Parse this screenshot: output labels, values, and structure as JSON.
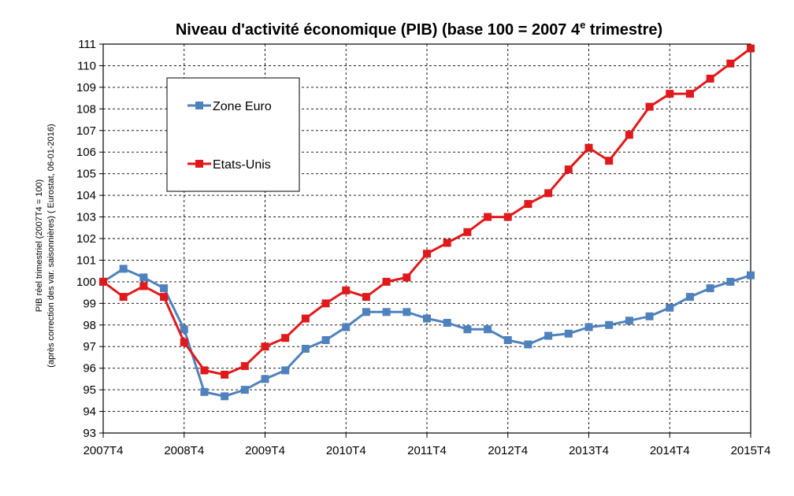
{
  "chart_data": {
    "type": "line",
    "title": "Niveau d'activité économique (PIB)  (base 100 = 2007 4",
    "title_sup": "e",
    "title_end": " trimestre)",
    "ylabel_line1": "PIB réel trimestriel (2007T4 = 100)",
    "ylabel_line2": "(après correction des var. saisonnières)  ( Eurostat, 06-01-2016)",
    "xlabel": "",
    "ylim": [
      93,
      111
    ],
    "yticks": [
      93,
      94,
      95,
      96,
      97,
      98,
      99,
      100,
      101,
      102,
      103,
      104,
      105,
      106,
      107,
      108,
      109,
      110,
      111
    ],
    "xtick_labels": [
      "2007T4",
      "2008T4",
      "2009T4",
      "2010T4",
      "2011T4",
      "2012T4",
      "2013T4",
      "2014T4",
      "2015T4"
    ],
    "x_quarters": 33,
    "grid": true,
    "legend_position": "top-left",
    "series": [
      {
        "name": "Zone Euro",
        "color": "#4f81bd",
        "marker": "square",
        "values": [
          100.0,
          100.6,
          100.2,
          99.7,
          97.8,
          94.9,
          94.7,
          95.0,
          95.5,
          95.9,
          96.9,
          97.3,
          97.9,
          98.6,
          98.6,
          98.6,
          98.3,
          98.1,
          97.8,
          97.8,
          97.3,
          97.1,
          97.5,
          97.6,
          97.9,
          98.0,
          98.2,
          98.4,
          98.8,
          99.3,
          99.7,
          100.0,
          100.3
        ]
      },
      {
        "name": "Etats-Unis",
        "color": "#e0191c",
        "marker": "square",
        "values": [
          100.0,
          99.3,
          99.8,
          99.3,
          97.2,
          95.9,
          95.7,
          96.1,
          97.0,
          97.4,
          98.3,
          99.0,
          99.6,
          99.3,
          100.0,
          100.2,
          101.3,
          101.8,
          102.3,
          103.0,
          103.0,
          103.6,
          104.1,
          105.2,
          106.2,
          105.6,
          106.8,
          108.1,
          108.7,
          108.7,
          109.4,
          110.1,
          110.8
        ]
      }
    ]
  }
}
